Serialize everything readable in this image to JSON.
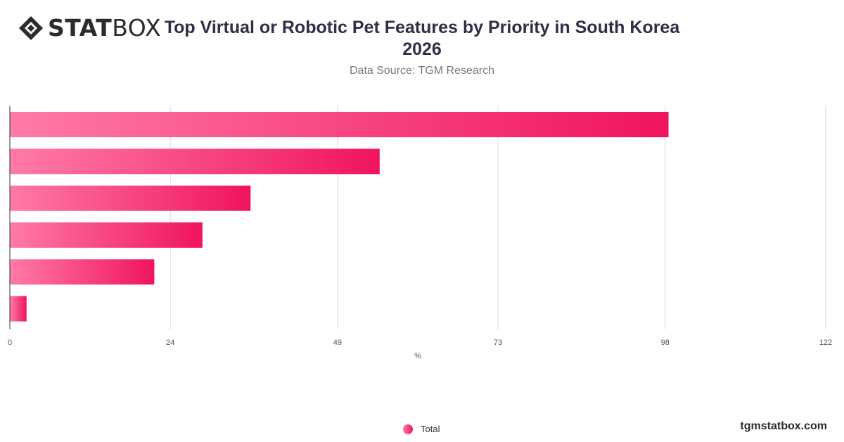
{
  "header": {
    "logo_bold": "STAT",
    "logo_light": "BOX",
    "title": "Top Virtual or Robotic Pet Features by Priority in South Korea 2026",
    "subtitle": "Data Source: TGM Research"
  },
  "footer": {
    "legend_label": "Total",
    "brand": "tgmstatbox.com"
  },
  "colors": {
    "bar_start": "#ff7aa8",
    "bar_end": "#f0145e",
    "grid": "#d9d9d9",
    "axis": "#333333"
  },
  "chart_data": {
    "type": "bar",
    "orientation": "horizontal",
    "categories": [
      "",
      "",
      "",
      "",
      "",
      ""
    ],
    "series": [
      {
        "name": "Total",
        "values": [
          98.5,
          55.3,
          36.0,
          28.8,
          21.6,
          2.5
        ]
      }
    ],
    "xlabel": "%",
    "xlim": [
      0,
      122
    ],
    "xticks": [
      0,
      24,
      49,
      73,
      98,
      122
    ],
    "grid": true,
    "legend": "bottom-center"
  }
}
